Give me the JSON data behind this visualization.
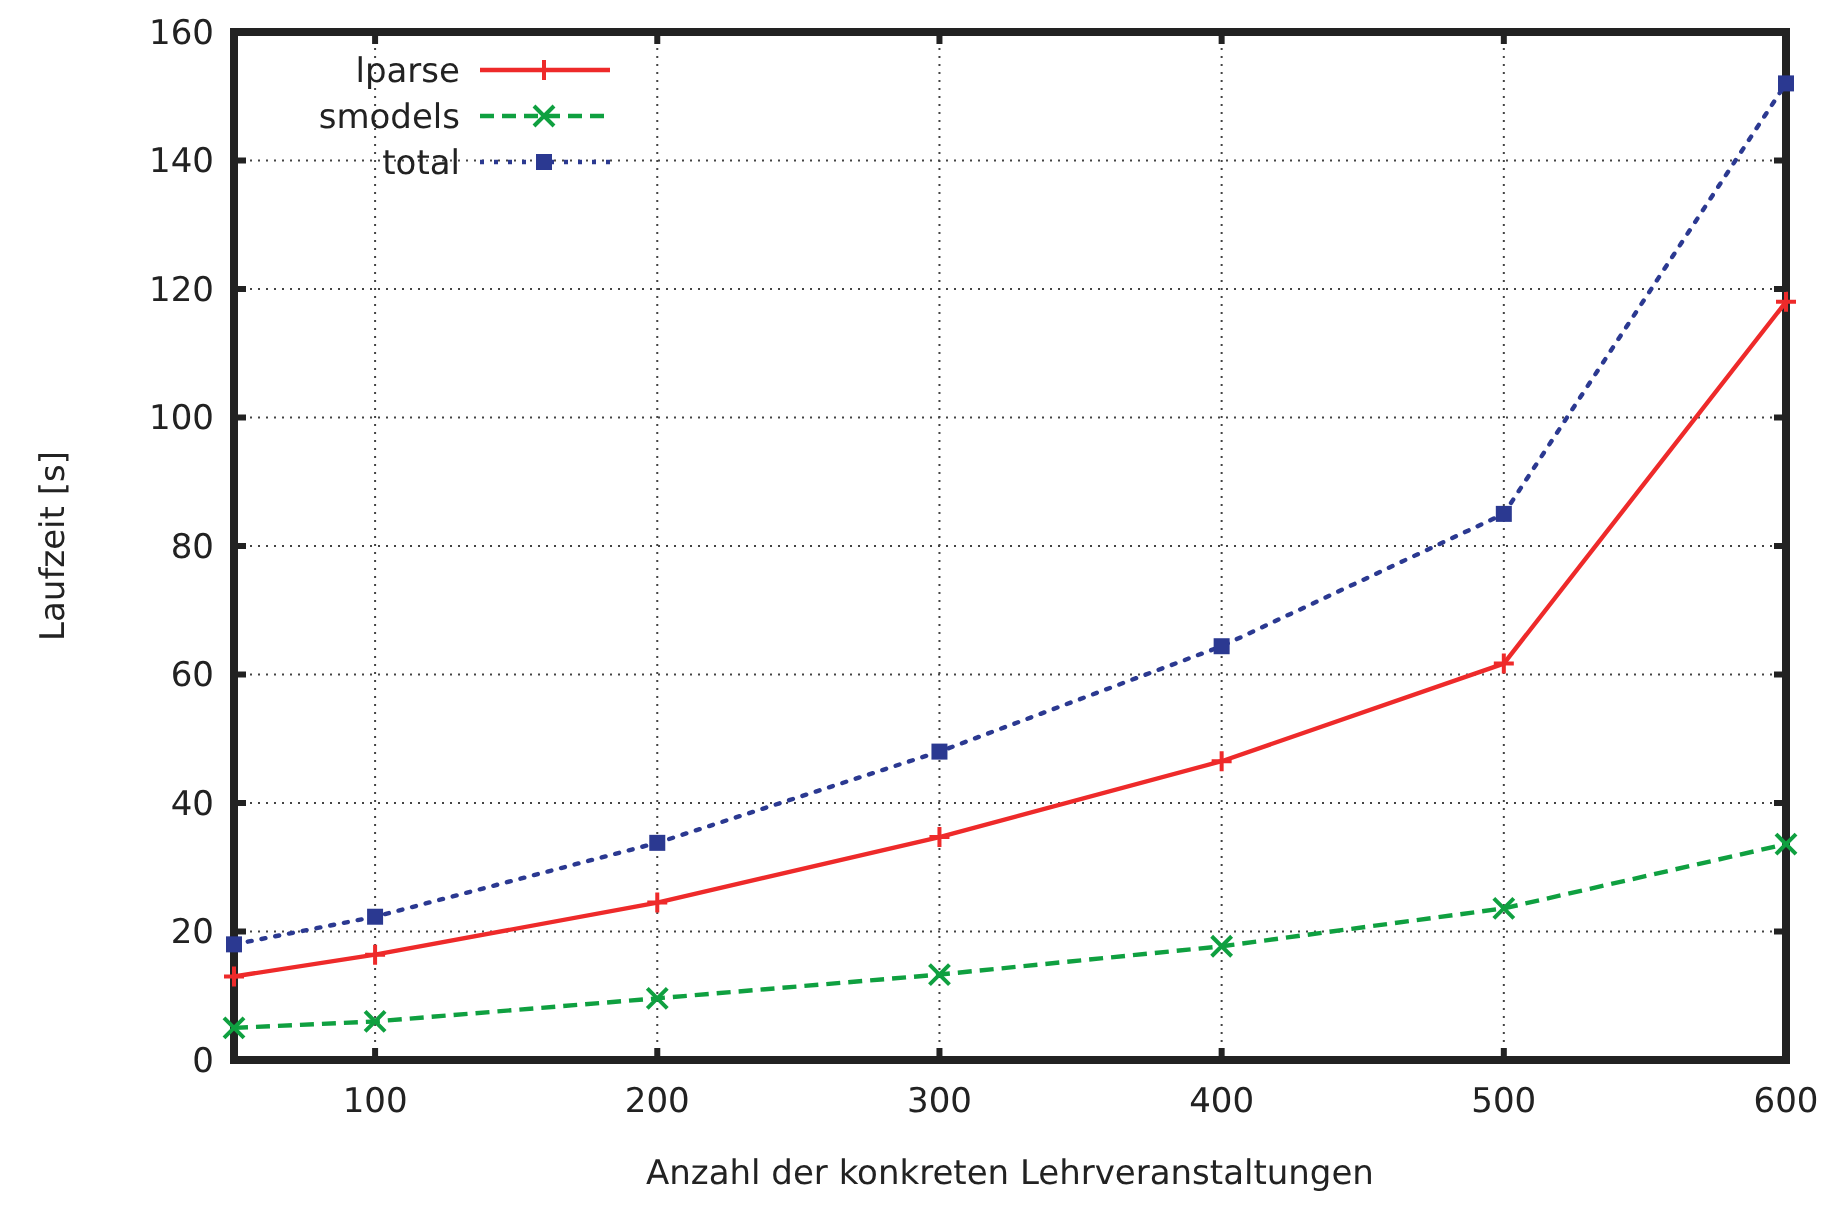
{
  "chart_data": {
    "type": "line",
    "xlabel": "Anzahl der konkreten Lehrveranstaltungen",
    "ylabel": "Laufzeit [s]",
    "x": [
      50,
      100,
      200,
      300,
      400,
      500,
      600
    ],
    "xlim": [
      50,
      600
    ],
    "xticks": [
      100,
      200,
      300,
      400,
      500,
      600
    ],
    "ylim": [
      0,
      160
    ],
    "yticks": [
      0,
      20,
      40,
      60,
      80,
      100,
      120,
      140,
      160
    ],
    "grid": true,
    "legend": "top left",
    "series": [
      {
        "name": "lparse",
        "color": "#ee2a2a",
        "values": [
          13,
          16.4,
          24.5,
          34.7,
          46.5,
          61.7,
          118
        ],
        "marker": "cross",
        "line_style": "solid"
      },
      {
        "name": "smodels",
        "color": "#0fa040",
        "values": [
          5,
          6,
          9.6,
          13.3,
          17.7,
          23.6,
          33.6
        ],
        "marker": "x",
        "line_style": "dashed"
      },
      {
        "name": "total",
        "color": "#2b3991",
        "values": [
          18,
          22.3,
          33.8,
          48,
          64.4,
          85,
          152
        ],
        "marker": "square",
        "line_style": "dotted"
      }
    ]
  }
}
